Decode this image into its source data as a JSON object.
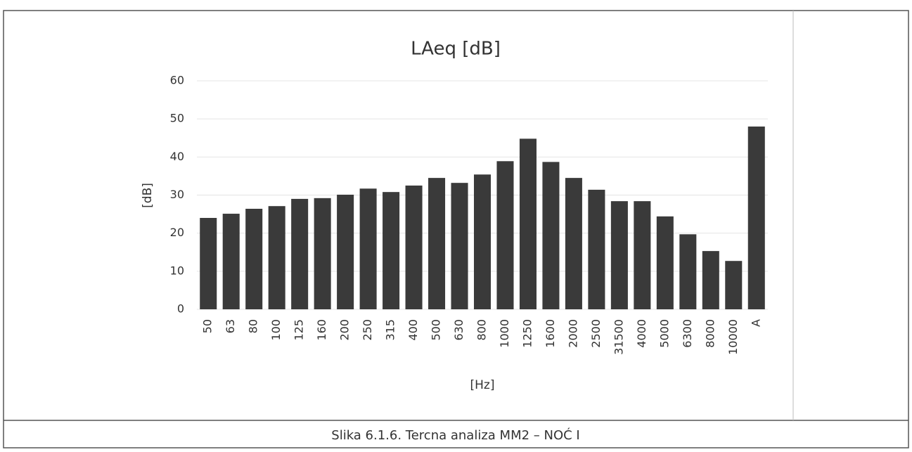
{
  "chart_data": {
    "type": "bar",
    "title": "LAeq [dB]",
    "y_label": "[dB]",
    "x_label": "[Hz]",
    "categories": [
      "50",
      "63",
      "80",
      "100",
      "125",
      "160",
      "200",
      "250",
      "315",
      "400",
      "500",
      "630",
      "800",
      "1000",
      "1250",
      "1600",
      "2000",
      "2500",
      "31500",
      "4000",
      "5000",
      "6300",
      "8000",
      "10000",
      "A"
    ],
    "values": [
      24,
      25.1,
      26.4,
      27.1,
      29,
      29.2,
      30.1,
      31.7,
      30.8,
      32.5,
      34.5,
      33.2,
      35.4,
      38.9,
      44.8,
      38.7,
      34.5,
      31.4,
      28.4,
      28.4,
      24.4,
      19.7,
      15.3,
      12.7,
      48
    ],
    "color": "#3a3a3a",
    "ylim": [
      0,
      60
    ],
    "yticks": [
      0,
      10,
      20,
      30,
      40,
      50,
      60
    ],
    "grid": true
  },
  "caption": "Slika 6.1.6. Tercna analiza MM2 – NOĆ I"
}
